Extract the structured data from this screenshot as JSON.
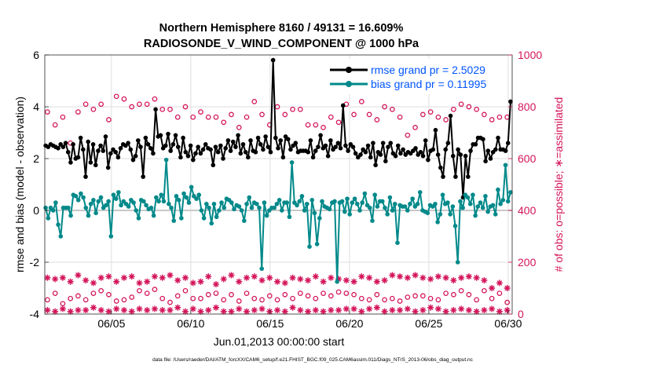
{
  "chart_data": {
    "type": "line",
    "title_line1": "Northern Hemisphere 8160 / 49131 = 16.609%",
    "title_line2": "RADIOSONDE_V_WIND_COMPONENT @ 1000 hPa",
    "xlabel": "Jun.01,2013 00:00:00 start",
    "ylabel_left": "rmse and bias (model - observation)",
    "ylabel_right": "# of obs: o=possible; ∗=assimilated",
    "footer": "data file: /Users/raeder/DAI/ATM_forcXX/CAM6_setup/f.e21.FHIST_BGC.f09_025.CAM6assim.011/Diags_NTrS_2013-06/obs_diag_output.nc",
    "xlim": [
      0.8,
      30.25
    ],
    "ylim_left": [
      -4,
      6
    ],
    "ylim_right": [
      0,
      1000
    ],
    "x_ticks": [
      {
        "value": 5,
        "label": "06/05"
      },
      {
        "value": 10,
        "label": "06/10"
      },
      {
        "value": 15,
        "label": "06/15"
      },
      {
        "value": 20,
        "label": "06/20"
      },
      {
        "value": 25,
        "label": "06/25"
      },
      {
        "value": 30,
        "label": "06/30"
      }
    ],
    "y_ticks_left": [
      -4,
      -2,
      0,
      2,
      4,
      6
    ],
    "y_ticks_right": [
      0,
      200,
      400,
      600,
      800,
      1000
    ],
    "legend": [
      {
        "label": "rmse grand pr = 2.5029",
        "color": "#000000",
        "marker": "dot"
      },
      {
        "label": "bias grand pr = 0.11995",
        "color": "#00898a",
        "marker": "dot"
      }
    ],
    "series": [
      {
        "name": "rmse",
        "axis": "left",
        "color": "#000000",
        "values": [
          2.5,
          2.45,
          2.55,
          2.5,
          2.45,
          2.4,
          2.55,
          2.45,
          2.6,
          2.25,
          1.85,
          2.55,
          2.0,
          2.05,
          2.8,
          2.35,
          1.3,
          2.65,
          1.85,
          2.55,
          1.75,
          2.3,
          2.5,
          2.3,
          2.85,
          1.65,
          2.2,
          2.35,
          2.25,
          2.05,
          2.4,
          2.55,
          2.5,
          2.6,
          2.35,
          1.95,
          2.1,
          2.7,
          2.45,
          1.3,
          2.8,
          2.55,
          2.4,
          2.2,
          3.9,
          2.85,
          2.9,
          2.4,
          2.5,
          2.95,
          2.3,
          2.55,
          2.9,
          2.45,
          2.05,
          2.8,
          2.25,
          2.1,
          2.5,
          1.95,
          2.2,
          2.45,
          2.2,
          2.35,
          2.55,
          2.4,
          2.35,
          1.75,
          2.45,
          2.25,
          2.5,
          2.0,
          2.4,
          2.7,
          2.3,
          2.65,
          2.45,
          2.9,
          2.2,
          2.55,
          2.25,
          2.05,
          2.7,
          2.3,
          2.25,
          2.8,
          2.55,
          2.35,
          2.85,
          2.45,
          2.25,
          5.8,
          2.8,
          2.4,
          2.7,
          2.05,
          2.85,
          2.75,
          2.35,
          2.5,
          2.6,
          2.25,
          2.3,
          2.3,
          2.3,
          2.25,
          2.7,
          2.05,
          2.3,
          2.45,
          2.9,
          2.4,
          2.5,
          2.1,
          2.7,
          2.35,
          2.45,
          2.6,
          2.4,
          4.05,
          2.5,
          2.3,
          2.55,
          2.45,
          2.2,
          2.05,
          2.15,
          2.35,
          2.25,
          2.5,
          2.05,
          2.6,
          1.75,
          2.25,
          2.15,
          2.6,
          1.9,
          2.45,
          2.6,
          2.2,
          2.1,
          2.5,
          2.2,
          2.35,
          2.15,
          2.25,
          2.2,
          2.3,
          2.4,
          2.15,
          2.25,
          2.1,
          2.7,
          1.95,
          2.3,
          2.35,
          3.1,
          2.15,
          1.65,
          1.3,
          2.35,
          2.6,
          3.65,
          2.1,
          1.3,
          2.35,
          2.15,
          0.5,
          2.1,
          1.3,
          2.3,
          2.55,
          2.55,
          2.8,
          2.8,
          2.75,
          1.9,
          2.3,
          2.0,
          2.25,
          2.35,
          2.8,
          2.35,
          2.35,
          2.3,
          2.6,
          4.2
        ]
      },
      {
        "name": "bias",
        "axis": "left",
        "color": "#00898a",
        "values": [
          0.1,
          -0.3,
          0.1,
          0.0,
          0.3,
          -0.55,
          -1.0,
          0.1,
          0.1,
          0.1,
          -0.2,
          0.6,
          0.55,
          0.4,
          0.65,
          0.5,
          0.1,
          -0.2,
          0.25,
          0.4,
          -0.1,
          0.35,
          0.5,
          0.1,
          0.2,
          0.35,
          -1.0,
          0.6,
          0.45,
          0.7,
          0.2,
          0.35,
          0.25,
          0.15,
          0.4,
          0.3,
          0.0,
          -0.3,
          0.4,
          0.35,
          0.2,
          0.05,
          0.1,
          -0.2,
          0.5,
          0.35,
          0.6,
          0.35,
          1.95,
          0.25,
          0.1,
          -0.4,
          0.55,
          0.4,
          -0.3,
          0.65,
          0.5,
          0.3,
          0.9,
          0.55,
          0.45,
          0.6,
          0.0,
          -0.3,
          0.25,
          0.1,
          -0.5,
          0.25,
          -0.25,
          0.0,
          0.3,
          0.1,
          0.45,
          0.4,
          0.3,
          0.05,
          0.2,
          0.15,
          0.0,
          -0.4,
          0.25,
          0.5,
          0.1,
          0.3,
          0.25,
          0.1,
          -2.25,
          0.3,
          -0.2,
          0.0,
          0.1,
          0.1,
          0.25,
          0.4,
          0.0,
          0.3,
          0.3,
          -0.25,
          1.85,
          0.3,
          0.2,
          0.35,
          0.55,
          0.0,
          0.25,
          -1.4,
          0.4,
          -0.1,
          -1.3,
          -0.3,
          0.35,
          0.15,
          0.1,
          0.05,
          0.3,
          0.35,
          -2.75,
          0.3,
          0.35,
          -0.05,
          0.45,
          -0.15,
          0.3,
          0.45,
          0.25,
          0.0,
          0.3,
          0.65,
          0.2,
          0.1,
          -0.4,
          0.6,
          0.15,
          0.35,
          0.35,
          0.1,
          -0.15,
          0.5,
          0.0,
          0.25,
          -1.25,
          0.2,
          0.15,
          0.15,
          0.0,
          0.25,
          0.45,
          0.15,
          0.25,
          0.7,
          0.0,
          -0.05,
          -0.1,
          0.2,
          0.15,
          0.25,
          -0.45,
          -0.15,
          0.6,
          0.25,
          0.3,
          -0.15,
          0.15,
          -0.6,
          -2.0,
          0.35,
          0.1,
          0.6,
          0.5,
          0.25,
          0.6,
          -0.2,
          0.15,
          0.3,
          0.1,
          0.55,
          -0.05,
          0.15,
          0.2,
          -0.15,
          0.8,
          0.25,
          0.4,
          1.75,
          0.35,
          0.7
        ]
      },
      {
        "name": "possible (upper group)",
        "axis": "right",
        "color": "#d4145a",
        "marker": "circle",
        "values": [
          780,
          730,
          760,
          660,
          780,
          810,
          790,
          810,
          750,
          840,
          830,
          800,
          810,
          810,
          830,
          790,
          790,
          760,
          800,
          760,
          780,
          760,
          760,
          740,
          770,
          720,
          760,
          820,
          770,
          730,
          800,
          770,
          790,
          790,
          730,
          730,
          720,
          760,
          740,
          810,
          770,
          820,
          770,
          750,
          800,
          790,
          760,
          690,
          720,
          770,
          780,
          760,
          750,
          790,
          810,
          800,
          790,
          770,
          750,
          760,
          760
        ]
      },
      {
        "name": "possible (lower group)",
        "axis": "right",
        "color": "#d4145a",
        "marker": "circle",
        "values": [
          55,
          80,
          40,
          60,
          70,
          55,
          80,
          90,
          75,
          50,
          55,
          65,
          90,
          80,
          95,
          60,
          45,
          70,
          90,
          60,
          60,
          75,
          80,
          55,
          75,
          50,
          80,
          60,
          55,
          70,
          55,
          75,
          60,
          80,
          70,
          60,
          80,
          70,
          85,
          80,
          75,
          60,
          55,
          75,
          55,
          60,
          50,
          65,
          70,
          70,
          60,
          55,
          80,
          75,
          90,
          75,
          55,
          90,
          60,
          80,
          45
        ]
      },
      {
        "name": "assimilated (upper group)",
        "axis": "right",
        "color": "#d4145a",
        "marker": "star",
        "values": [
          140,
          135,
          140,
          125,
          150,
          130,
          120,
          140,
          145,
          125,
          140,
          145,
          120,
          125,
          145,
          140,
          150,
          130,
          140,
          120,
          125,
          145,
          115,
          135,
          150,
          125,
          140,
          145,
          130,
          140,
          125,
          120,
          140,
          135,
          130,
          145,
          125,
          140,
          135,
          130,
          125,
          145,
          140,
          125,
          130,
          150,
          145,
          140,
          150,
          140,
          135,
          145,
          140,
          130,
          140,
          145,
          140,
          130,
          100,
          120,
          100
        ]
      },
      {
        "name": "assimilated (lower group)",
        "axis": "right",
        "color": "#d4145a",
        "marker": "star",
        "values": [
          15,
          10,
          20,
          10,
          15,
          15,
          25,
          15,
          10,
          20,
          15,
          10,
          20,
          15,
          20,
          15,
          15,
          25,
          10,
          20,
          10,
          15,
          25,
          10,
          10,
          20,
          10,
          15,
          20,
          10,
          15,
          10,
          25,
          15,
          10,
          15,
          10,
          15,
          15,
          20,
          20,
          10,
          20,
          25,
          10,
          15,
          15,
          20,
          10,
          15,
          25,
          20,
          10,
          15,
          20,
          15,
          10,
          15,
          20,
          10,
          15
        ]
      }
    ]
  }
}
